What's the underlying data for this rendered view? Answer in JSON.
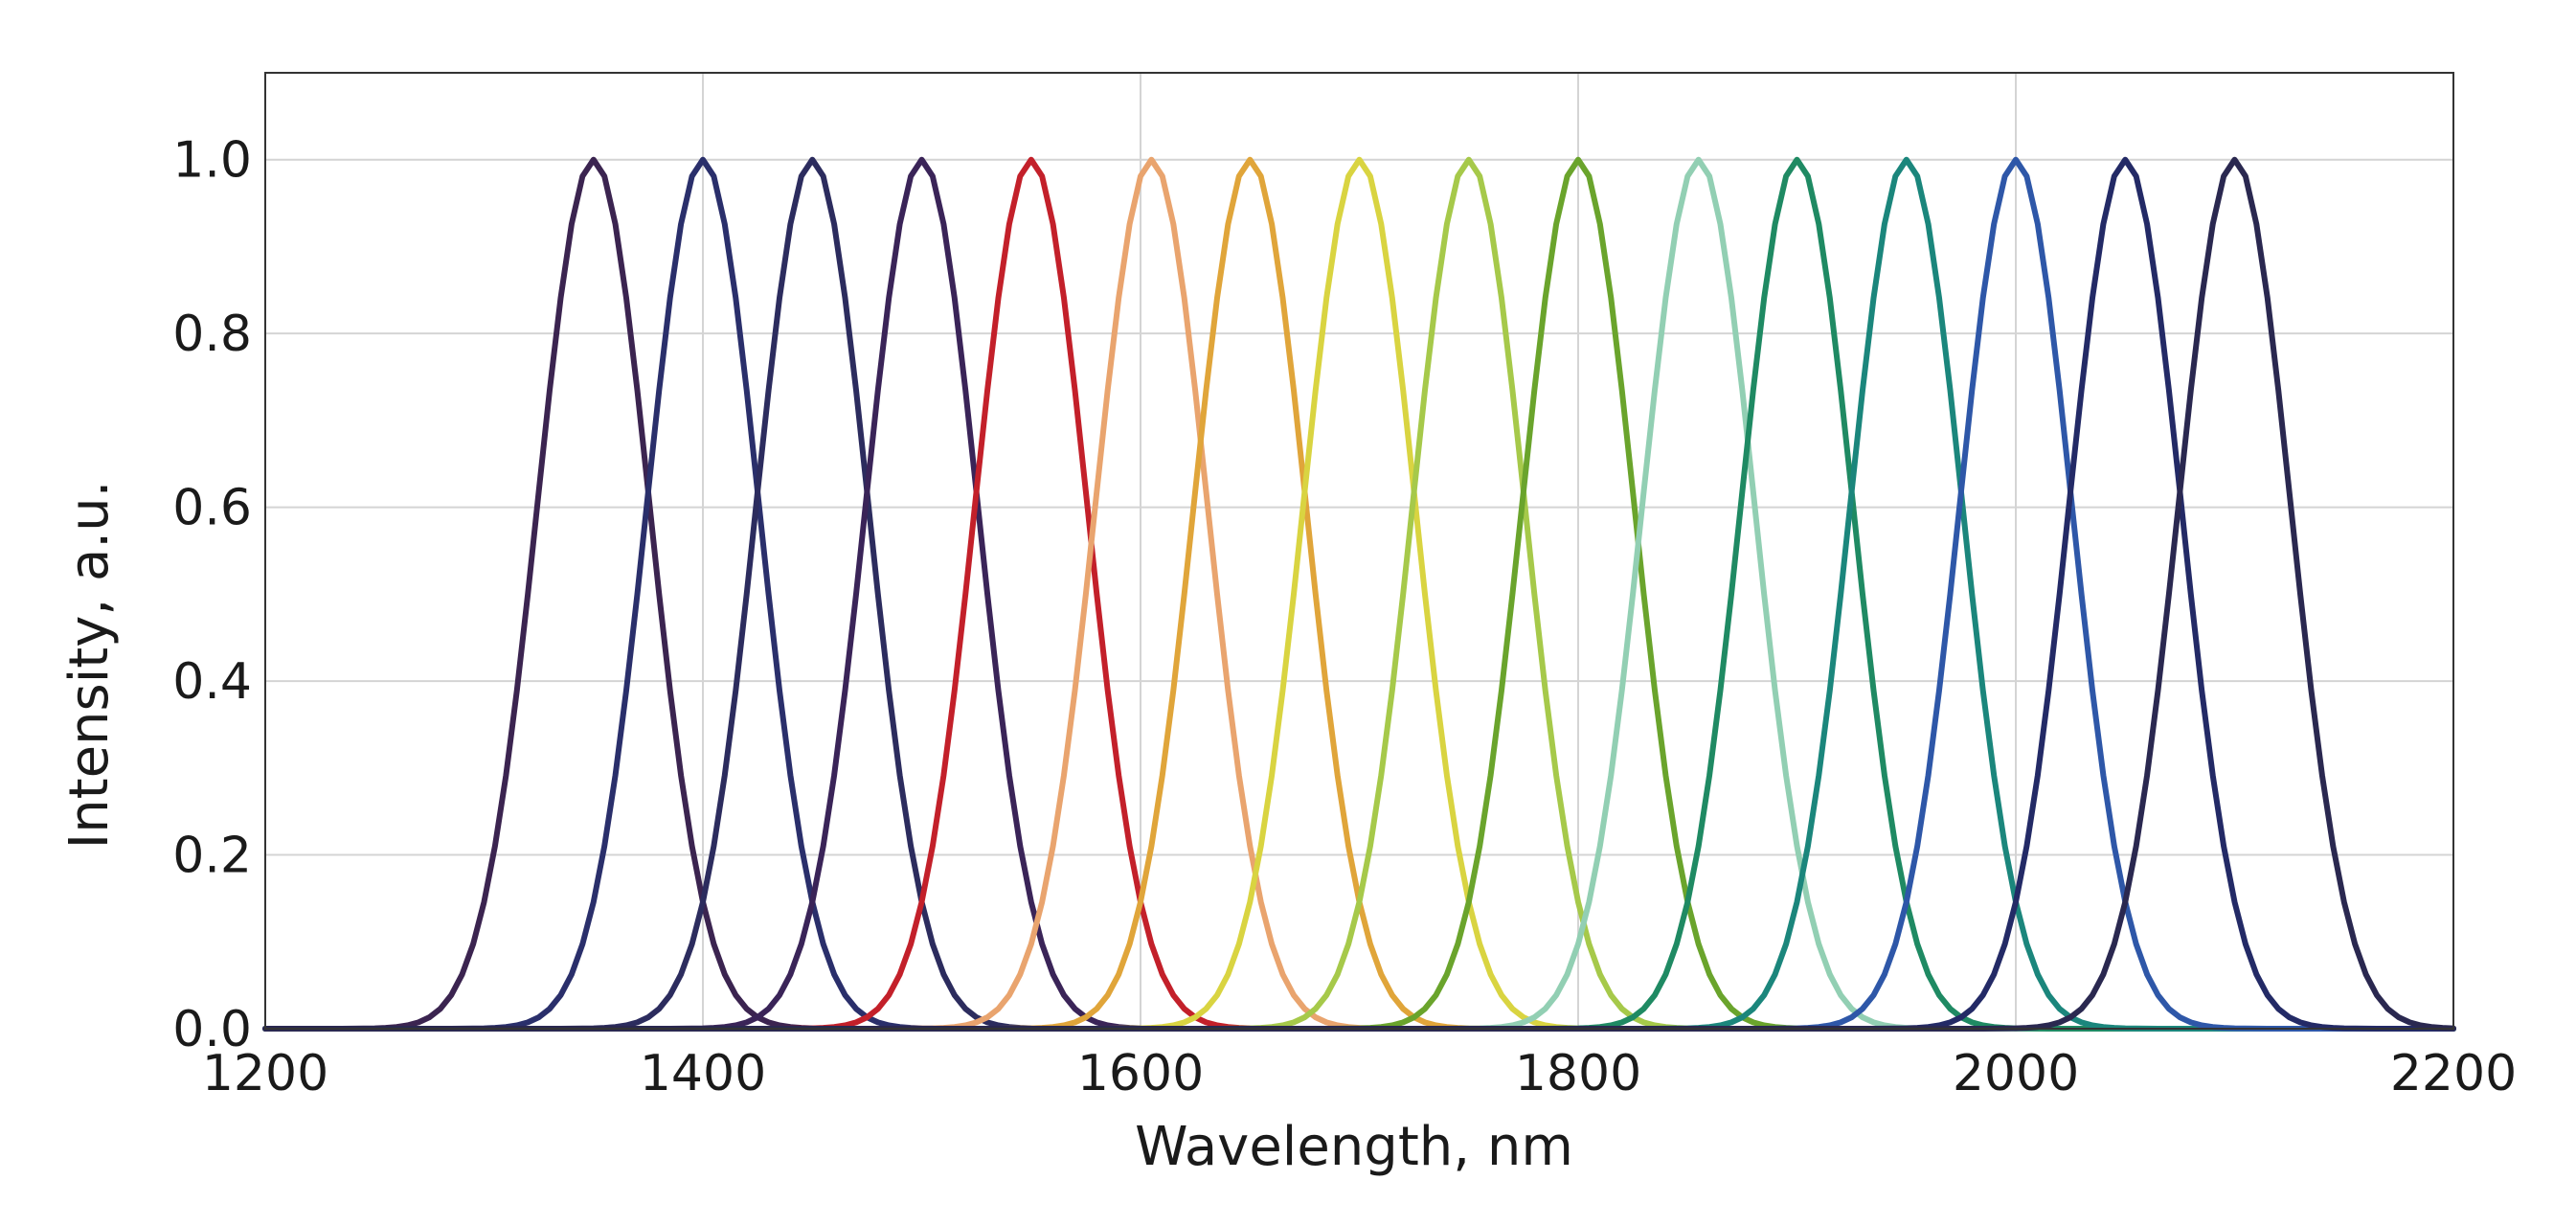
{
  "chart_data": {
    "type": "line",
    "title": "",
    "xlabel": "Wavelength, nm",
    "ylabel": "Intensity, a.u.",
    "xlim": [
      1200,
      2200
    ],
    "ylim": [
      0,
      1.1
    ],
    "xticks": [
      "1200",
      "1400",
      "1600",
      "1800",
      "2000",
      "2200"
    ],
    "yticks": [
      "0.0",
      "0.2",
      "0.4",
      "0.6",
      "0.8",
      "1.0"
    ],
    "grid": true,
    "legend": "none",
    "curve_shape": "gaussian",
    "x_step": 5,
    "peak_value": 1.0,
    "fwhm_nm": 60,
    "series": [
      {
        "peak_x": 1350,
        "color": "#3b2450"
      },
      {
        "peak_x": 1400,
        "color": "#2a2f6b"
      },
      {
        "peak_x": 1450,
        "color": "#2c2c5e"
      },
      {
        "peak_x": 1500,
        "color": "#3a2458"
      },
      {
        "peak_x": 1550,
        "color": "#c3202a"
      },
      {
        "peak_x": 1605,
        "color": "#e9a46e"
      },
      {
        "peak_x": 1650,
        "color": "#e0a53a"
      },
      {
        "peak_x": 1700,
        "color": "#d9d441"
      },
      {
        "peak_x": 1750,
        "color": "#a6c94a"
      },
      {
        "peak_x": 1800,
        "color": "#6aa42c"
      },
      {
        "peak_x": 1855,
        "color": "#92cfb3"
      },
      {
        "peak_x": 1900,
        "color": "#1f8a63"
      },
      {
        "peak_x": 1950,
        "color": "#1b867c"
      },
      {
        "peak_x": 2000,
        "color": "#2e57a8"
      },
      {
        "peak_x": 2050,
        "color": "#232a66"
      },
      {
        "peak_x": 2100,
        "color": "#2a2850"
      }
    ]
  }
}
